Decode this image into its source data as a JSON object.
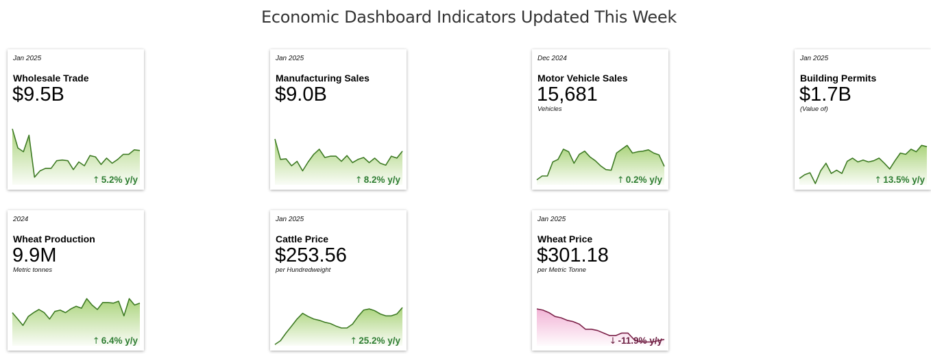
{
  "title": "Economic Dashboard Indicators Updated This Week",
  "colors": {
    "up_line": "#3d7a23",
    "up_fill": "#9ccc65",
    "up_text": "#2e7d32",
    "down_line": "#7b2148",
    "down_fill": "#f0a7cf",
    "down_text": "#6d1f43"
  },
  "cards": [
    {
      "date": "Jan 2025",
      "name": "Wholesale Trade",
      "value": "$9.5B",
      "unit": "",
      "arrow": "↑",
      "change": "5.2% y/y",
      "direction": "up",
      "icon": "arrow-up-icon"
    },
    {
      "date": "Jan 2025",
      "name": "Manufacturing Sales",
      "value": "$9.0B",
      "unit": "",
      "arrow": "↑",
      "change": "8.2% y/y",
      "direction": "up",
      "icon": "arrow-up-icon"
    },
    {
      "date": "Dec 2024",
      "name": "Motor Vehicle Sales",
      "value": "15,681",
      "unit": "Vehicles",
      "arrow": "↑",
      "change": "0.2% y/y",
      "direction": "up",
      "icon": "arrow-up-icon"
    },
    {
      "date": "Jan 2025",
      "name": "Building Permits",
      "value": "$1.7B",
      "unit": "(Value of)",
      "arrow": "↑",
      "change": "13.5% y/y",
      "direction": "up",
      "icon": "arrow-up-icon"
    },
    {
      "date": "2024",
      "name": "Wheat Production",
      "value": "9.9M",
      "unit": "Metric tonnes",
      "arrow": "↑",
      "change": "6.4% y/y",
      "direction": "up",
      "icon": "arrow-up-icon"
    },
    {
      "date": "Jan 2025",
      "name": "Cattle Price",
      "value": "$253.56",
      "unit": "per Hundredweight",
      "arrow": "↑",
      "change": "25.2% y/y",
      "direction": "up",
      "icon": "arrow-up-icon"
    },
    {
      "date": "Jan 2025",
      "name": "Wheat Price",
      "value": "$301.18",
      "unit": "per Metric Tonne",
      "arrow": "↓",
      "change": "-11.9% y/y",
      "direction": "down",
      "icon": "arrow-down-icon"
    }
  ],
  "chart_data": [
    {
      "type": "area",
      "title": "Wholesale Trade",
      "values": [
        88,
        58,
        52,
        78,
        12,
        22,
        26,
        26,
        38,
        39,
        38,
        24,
        36,
        30,
        46,
        44,
        32,
        42,
        34,
        40,
        48,
        48,
        55,
        54
      ]
    },
    {
      "type": "area",
      "title": "Manufacturing Sales",
      "values": [
        72,
        40,
        41,
        30,
        37,
        22,
        36,
        48,
        56,
        43,
        45,
        45,
        37,
        46,
        35,
        40,
        43,
        35,
        42,
        34,
        31,
        45,
        42,
        53
      ]
    },
    {
      "type": "area",
      "title": "Motor Vehicle Sales",
      "values": [
        8,
        14,
        14,
        36,
        40,
        56,
        52,
        34,
        48,
        53,
        44,
        38,
        30,
        24,
        23,
        50,
        56,
        62,
        50,
        52,
        53,
        55,
        50,
        47,
        29
      ]
    },
    {
      "type": "area",
      "title": "Building Permits",
      "values": [
        10,
        16,
        19,
        2,
        22,
        34,
        18,
        23,
        18,
        37,
        42,
        36,
        39,
        36,
        38,
        42,
        34,
        25,
        38,
        50,
        48,
        56,
        52,
        62,
        60
      ]
    },
    {
      "type": "area",
      "title": "Wheat Production",
      "values": [
        52,
        42,
        32,
        46,
        52,
        57,
        52,
        42,
        54,
        56,
        52,
        58,
        62,
        59,
        74,
        64,
        57,
        68,
        68,
        67,
        70,
        47,
        74,
        64,
        67
      ]
    },
    {
      "type": "area",
      "title": "Cattle Price",
      "values": [
        2,
        8,
        20,
        31,
        42,
        51,
        46,
        42,
        40,
        37,
        35,
        31,
        28,
        28,
        34,
        46,
        56,
        58,
        55,
        50,
        47,
        47,
        50,
        60
      ]
    },
    {
      "type": "area",
      "title": "Wheat Price",
      "values": [
        58,
        56,
        52,
        46,
        44,
        40,
        38,
        34,
        26,
        26,
        24,
        20,
        16,
        16,
        20,
        20,
        10,
        6,
        6,
        6,
        8,
        10
      ]
    }
  ]
}
